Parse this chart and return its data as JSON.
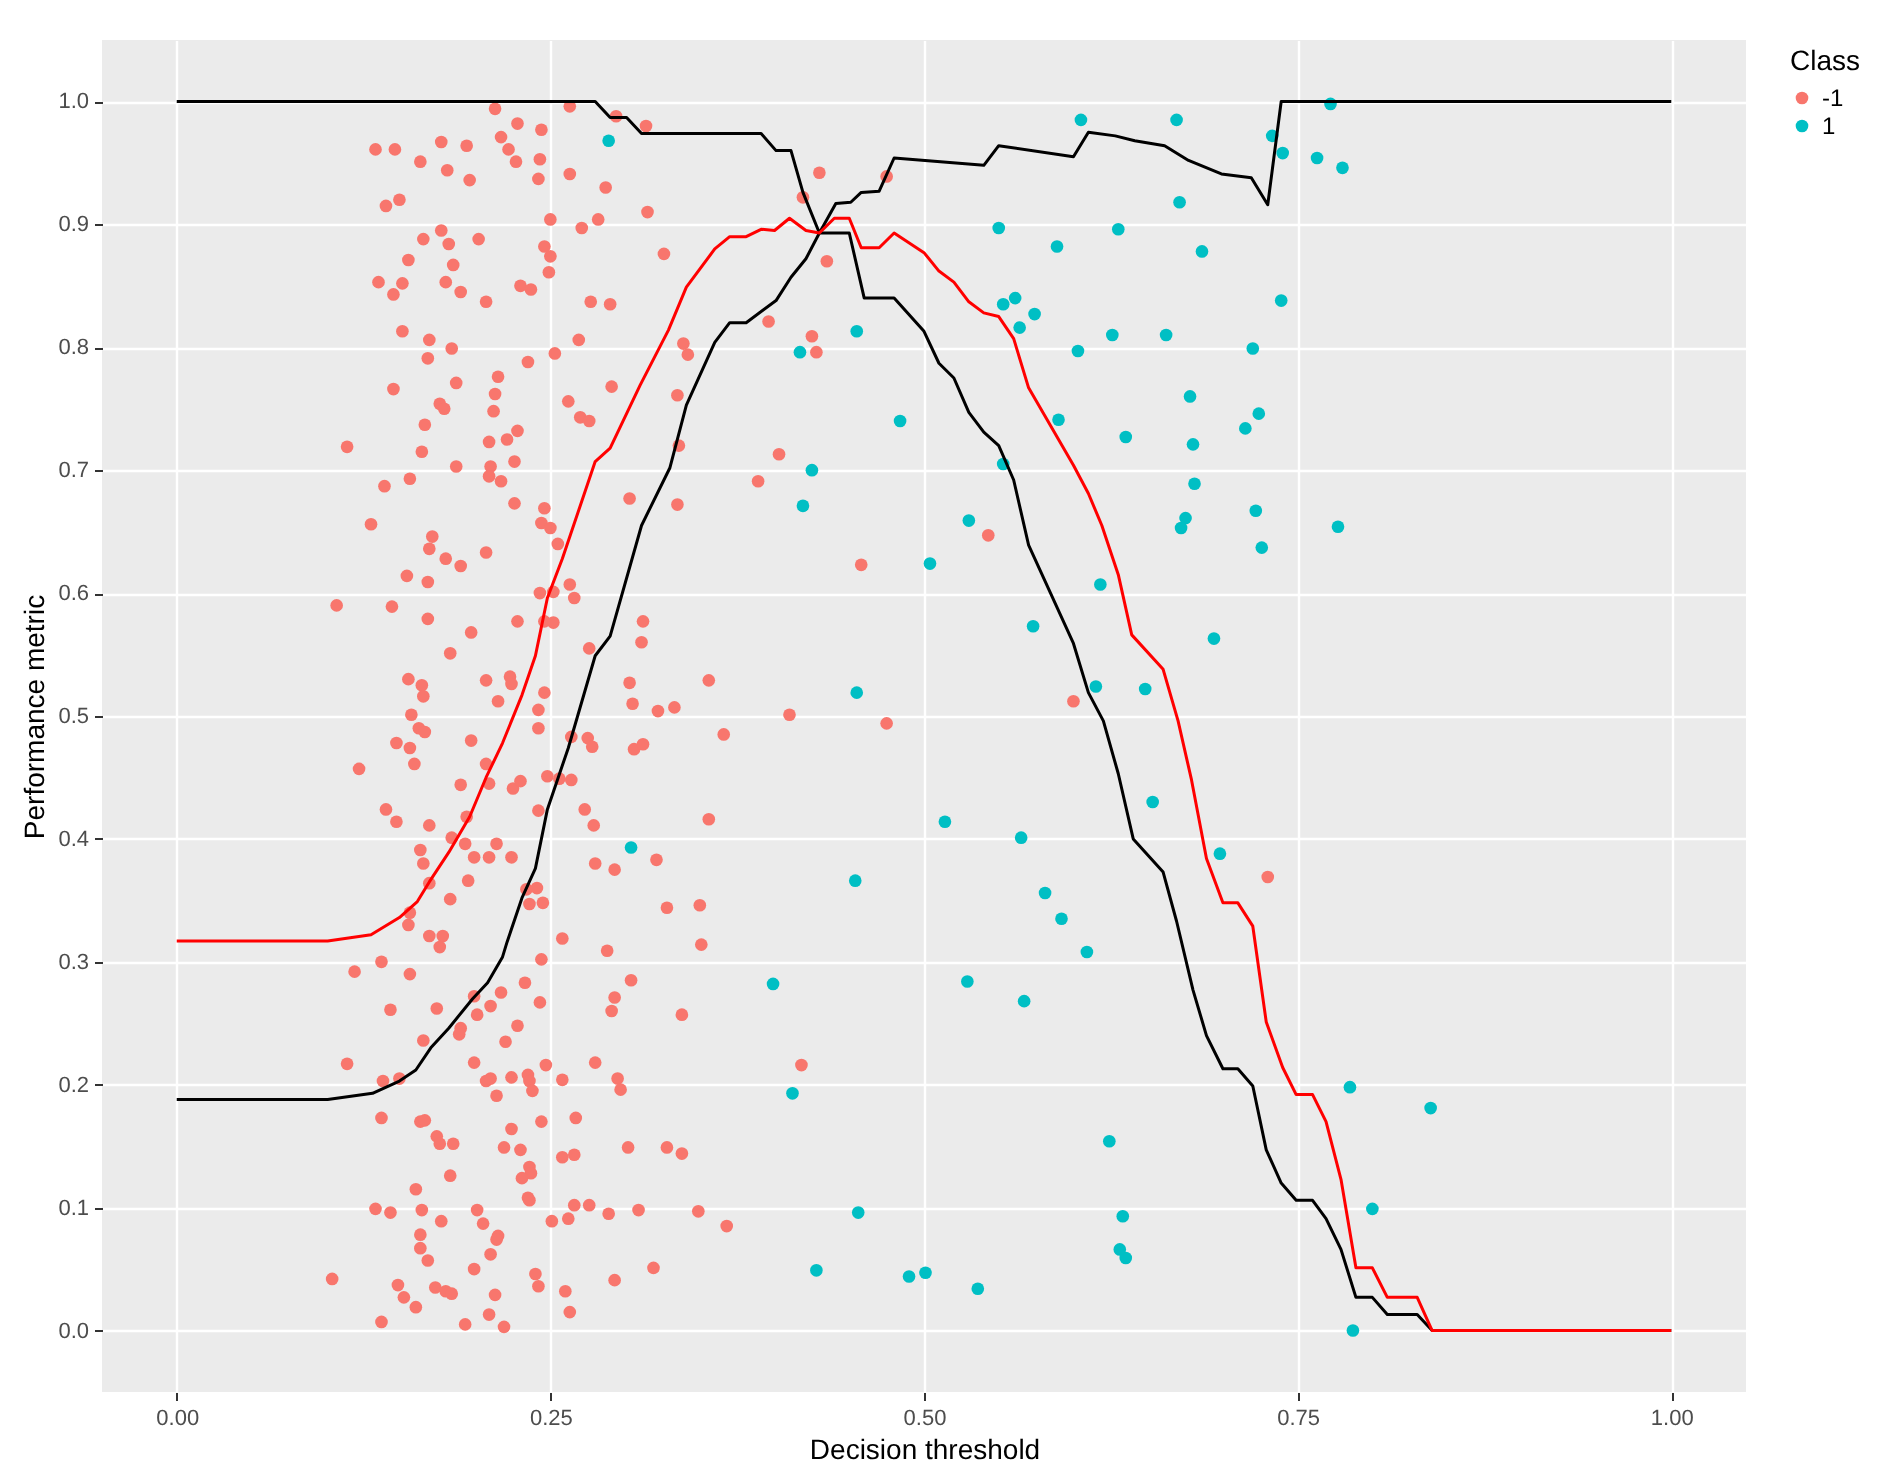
{
  "chart_data": {
    "type": "scatter",
    "xlabel": "Decision threshold",
    "ylabel": "Performance metric",
    "legend_title": "Class",
    "legend": "right",
    "grid": true,
    "xlim": [
      -0.05,
      1.05
    ],
    "ylim": [
      -0.05,
      1.05
    ],
    "xticks": [
      {
        "value": 0,
        "label": "0.00"
      },
      {
        "value": 0.25,
        "label": "0.25"
      },
      {
        "value": 0.5,
        "label": "0.50"
      },
      {
        "value": 0.75,
        "label": "0.75"
      },
      {
        "value": 1,
        "label": "1.00"
      }
    ],
    "yticks": [
      {
        "value": 0,
        "label": "0.0"
      },
      {
        "value": 0.1,
        "label": "0.1"
      },
      {
        "value": 0.2,
        "label": "0.2"
      },
      {
        "value": 0.3,
        "label": "0.3"
      },
      {
        "value": 0.4,
        "label": "0.4"
      },
      {
        "value": 0.5,
        "label": "0.5"
      },
      {
        "value": 0.6,
        "label": "0.6"
      },
      {
        "value": 0.7,
        "label": "0.7"
      },
      {
        "value": 0.8,
        "label": "0.8"
      },
      {
        "value": 0.9,
        "label": "0.9"
      },
      {
        "value": 1,
        "label": "1.0"
      }
    ],
    "series": [
      {
        "name": "-1",
        "marker": "circle",
        "color": "#f8766d",
        "x": [
          0.213,
          0.263,
          0.294,
          0.314,
          0.228,
          0.244,
          0.217,
          0.133,
          0.146,
          0.177,
          0.194,
          0.222,
          0.163,
          0.181,
          0.227,
          0.243,
          0.196,
          0.242,
          0.263,
          0.287,
          0.43,
          0.475,
          0.419,
          0.14,
          0.149,
          0.315,
          0.25,
          0.282,
          0.271,
          0.177,
          0.165,
          0.182,
          0.202,
          0.246,
          0.25,
          0.326,
          0.155,
          0.185,
          0.249,
          0.435,
          0.135,
          0.151,
          0.18,
          0.19,
          0.145,
          0.207,
          0.23,
          0.237,
          0.277,
          0.29,
          0.396,
          0.425,
          0.428,
          0.151,
          0.169,
          0.184,
          0.168,
          0.253,
          0.269,
          0.235,
          0.339,
          0.342,
          0.145,
          0.187,
          0.215,
          0.213,
          0.291,
          0.176,
          0.179,
          0.212,
          0.262,
          0.27,
          0.276,
          0.335,
          0.166,
          0.114,
          0.164,
          0.209,
          0.221,
          0.228,
          0.187,
          0.21,
          0.209,
          0.217,
          0.226,
          0.336,
          0.403,
          0.389,
          0.139,
          0.156,
          0.226,
          0.246,
          0.244,
          0.25,
          0.303,
          0.335,
          0.13,
          0.171,
          0.169,
          0.18,
          0.19,
          0.207,
          0.255,
          0.458,
          0.154,
          0.168,
          0.107,
          0.144,
          0.168,
          0.243,
          0.252,
          0.263,
          0.266,
          0.197,
          0.228,
          0.246,
          0.252,
          0.312,
          0.311,
          0.276,
          0.183,
          0.155,
          0.164,
          0.165,
          0.207,
          0.223,
          0.224,
          0.215,
          0.246,
          0.242,
          0.303,
          0.305,
          0.356,
          0.322,
          0.333,
          0.41,
          0.157,
          0.366,
          0.543,
          0.6,
          0.475,
          0.73,
          0.162,
          0.166,
          0.242,
          0.147,
          0.156,
          0.159,
          0.197,
          0.122,
          0.264,
          0.275,
          0.278,
          0.306,
          0.312,
          0.207,
          0.19,
          0.209,
          0.225,
          0.23,
          0.248,
          0.256,
          0.264,
          0.14,
          0.147,
          0.169,
          0.194,
          0.242,
          0.273,
          0.279,
          0.356,
          0.163,
          0.165,
          0.169,
          0.184,
          0.193,
          0.199,
          0.209,
          0.214,
          0.224,
          0.195,
          0.183,
          0.234,
          0.241,
          0.236,
          0.245,
          0.28,
          0.293,
          0.321,
          0.328,
          0.35,
          0.351,
          0.156,
          0.155,
          0.169,
          0.178,
          0.176,
          0.258,
          0.288,
          0.137,
          0.119,
          0.156,
          0.244,
          0.233,
          0.217,
          0.243,
          0.304,
          0.293,
          0.291,
          0.338,
          0.143,
          0.174,
          0.199,
          0.201,
          0.21,
          0.19,
          0.189,
          0.228,
          0.22,
          0.165,
          0.114,
          0.138,
          0.149,
          0.199,
          0.207,
          0.214,
          0.21,
          0.224,
          0.235,
          0.236,
          0.238,
          0.247,
          0.258,
          0.28,
          0.295,
          0.297,
          0.418,
          0.137,
          0.163,
          0.166,
          0.224,
          0.244,
          0.267,
          0.174,
          0.176,
          0.185,
          0.219,
          0.23,
          0.258,
          0.266,
          0.302,
          0.328,
          0.338,
          0.236,
          0.237,
          0.231,
          0.16,
          0.183,
          0.235,
          0.236,
          0.133,
          0.143,
          0.164,
          0.177,
          0.201,
          0.205,
          0.215,
          0.214,
          0.251,
          0.262,
          0.266,
          0.276,
          0.289,
          0.309,
          0.349,
          0.368,
          0.163,
          0.163,
          0.168,
          0.21,
          0.199,
          0.24,
          0.242,
          0.293,
          0.319,
          0.104,
          0.148,
          0.152,
          0.16,
          0.173,
          0.18,
          0.184,
          0.213,
          0.209,
          0.219,
          0.193,
          0.137,
          0.26,
          0.263
        ],
        "values": [
          0.994,
          0.996,
          0.988,
          0.98,
          0.982,
          0.977,
          0.971,
          0.961,
          0.961,
          0.967,
          0.964,
          0.961,
          0.951,
          0.944,
          0.951,
          0.953,
          0.936,
          0.937,
          0.941,
          0.93,
          0.942,
          0.939,
          0.922,
          0.915,
          0.92,
          0.91,
          0.904,
          0.904,
          0.897,
          0.895,
          0.888,
          0.884,
          0.888,
          0.882,
          0.874,
          0.876,
          0.871,
          0.867,
          0.861,
          0.87,
          0.853,
          0.852,
          0.853,
          0.845,
          0.843,
          0.837,
          0.85,
          0.847,
          0.837,
          0.835,
          0.821,
          0.809,
          0.796,
          0.813,
          0.806,
          0.799,
          0.791,
          0.795,
          0.806,
          0.788,
          0.803,
          0.794,
          0.766,
          0.771,
          0.776,
          0.762,
          0.768,
          0.754,
          0.75,
          0.748,
          0.756,
          0.743,
          0.74,
          0.761,
          0.737,
          0.719,
          0.715,
          0.723,
          0.725,
          0.732,
          0.703,
          0.703,
          0.695,
          0.691,
          0.707,
          0.72,
          0.713,
          0.691,
          0.687,
          0.693,
          0.673,
          0.669,
          0.657,
          0.653,
          0.677,
          0.672,
          0.656,
          0.646,
          0.636,
          0.628,
          0.622,
          0.633,
          0.64,
          0.623,
          0.614,
          0.609,
          0.59,
          0.589,
          0.579,
          0.6,
          0.601,
          0.607,
          0.596,
          0.568,
          0.577,
          0.577,
          0.576,
          0.577,
          0.56,
          0.555,
          0.551,
          0.53,
          0.525,
          0.516,
          0.529,
          0.532,
          0.526,
          0.512,
          0.519,
          0.505,
          0.527,
          0.51,
          0.529,
          0.504,
          0.507,
          0.501,
          0.501,
          0.485,
          0.647,
          0.512,
          0.494,
          0.369,
          0.49,
          0.487,
          0.49,
          0.478,
          0.474,
          0.461,
          0.48,
          0.457,
          0.483,
          0.482,
          0.475,
          0.473,
          0.477,
          0.461,
          0.444,
          0.445,
          0.441,
          0.447,
          0.451,
          0.449,
          0.448,
          0.424,
          0.414,
          0.411,
          0.418,
          0.423,
          0.424,
          0.411,
          0.416,
          0.391,
          0.38,
          0.364,
          0.401,
          0.396,
          0.385,
          0.385,
          0.396,
          0.385,
          0.366,
          0.351,
          0.359,
          0.36,
          0.347,
          0.348,
          0.38,
          0.375,
          0.383,
          0.344,
          0.346,
          0.314,
          0.34,
          0.33,
          0.321,
          0.321,
          0.312,
          0.319,
          0.309,
          0.3,
          0.292,
          0.29,
          0.302,
          0.283,
          0.275,
          0.267,
          0.285,
          0.271,
          0.26,
          0.257,
          0.261,
          0.262,
          0.272,
          0.257,
          0.264,
          0.246,
          0.241,
          0.248,
          0.235,
          0.236,
          0.217,
          0.203,
          0.205,
          0.218,
          0.203,
          0.191,
          0.205,
          0.206,
          0.208,
          0.203,
          0.195,
          0.216,
          0.204,
          0.218,
          0.205,
          0.196,
          0.216,
          0.173,
          0.17,
          0.171,
          0.164,
          0.17,
          0.173,
          0.158,
          0.152,
          0.152,
          0.149,
          0.147,
          0.141,
          0.143,
          0.149,
          0.149,
          0.144,
          0.133,
          0.128,
          0.124,
          0.115,
          0.126,
          0.108,
          0.106,
          0.099,
          0.096,
          0.098,
          0.089,
          0.098,
          0.087,
          0.077,
          0.074,
          0.089,
          0.091,
          0.102,
          0.102,
          0.095,
          0.098,
          0.097,
          0.085,
          0.078,
          0.067,
          0.057,
          0.062,
          0.05,
          0.046,
          0.036,
          0.041,
          0.051,
          0.042,
          0.037,
          0.027,
          0.019,
          0.035,
          0.032,
          0.03,
          0.029,
          0.013,
          0.003,
          0.005,
          0.007,
          0.032,
          0.015
        ]
      },
      {
        "name": "1",
        "marker": "circle",
        "color": "#00bfc4",
        "x": [
          0.605,
          0.669,
          0.772,
          0.733,
          0.74,
          0.763,
          0.78,
          0.671,
          0.55,
          0.63,
          0.589,
          0.686,
          0.553,
          0.561,
          0.574,
          0.564,
          0.739,
          0.626,
          0.662,
          0.603,
          0.72,
          0.678,
          0.484,
          0.59,
          0.724,
          0.715,
          0.635,
          0.68,
          0.553,
          0.681,
          0.53,
          0.675,
          0.672,
          0.722,
          0.777,
          0.726,
          0.504,
          0.618,
          0.573,
          0.694,
          0.615,
          0.648,
          0.653,
          0.514,
          0.565,
          0.698,
          0.581,
          0.592,
          0.609,
          0.529,
          0.567,
          0.785,
          0.839,
          0.624,
          0.8,
          0.633,
          0.631,
          0.635,
          0.49,
          0.501,
          0.536,
          0.787,
          0.304,
          0.454,
          0.399,
          0.412,
          0.456,
          0.428,
          0.289,
          0.455,
          0.417,
          0.425,
          0.419,
          0.455
        ],
        "values": [
          0.985,
          0.985,
          0.998,
          0.972,
          0.958,
          0.954,
          0.946,
          0.918,
          0.897,
          0.896,
          0.882,
          0.878,
          0.835,
          0.84,
          0.827,
          0.816,
          0.838,
          0.81,
          0.81,
          0.797,
          0.799,
          0.76,
          0.74,
          0.741,
          0.746,
          0.734,
          0.727,
          0.721,
          0.705,
          0.689,
          0.659,
          0.661,
          0.653,
          0.667,
          0.654,
          0.637,
          0.624,
          0.607,
          0.573,
          0.563,
          0.524,
          0.522,
          0.43,
          0.414,
          0.401,
          0.388,
          0.356,
          0.335,
          0.308,
          0.284,
          0.268,
          0.198,
          0.181,
          0.154,
          0.099,
          0.093,
          0.066,
          0.059,
          0.044,
          0.047,
          0.034,
          0.0,
          0.393,
          0.366,
          0.282,
          0.193,
          0.096,
          0.049,
          0.968,
          0.813,
          0.796,
          0.7,
          0.671,
          0.519
        ]
      },
      {
        "type": "line",
        "color": "#000000",
        "x": [
          0,
          0.28,
          0.29,
          0.301,
          0.311,
          0.391,
          0.401,
          0.411,
          0.419,
          0.43,
          0.441,
          0.451,
          0.458,
          0.47,
          0.48,
          0.54,
          0.55,
          0.6,
          0.61,
          0.628,
          0.641,
          0.661,
          0.677,
          0.699,
          0.719,
          0.73,
          0.739,
          1
        ],
        "values": [
          1,
          1,
          0.987,
          0.987,
          0.974,
          0.974,
          0.96,
          0.96,
          0.926,
          0.893,
          0.917,
          0.918,
          0.926,
          0.927,
          0.954,
          0.948,
          0.964,
          0.955,
          0.975,
          0.972,
          0.968,
          0.964,
          0.952,
          0.941,
          0.938,
          0.916,
          1,
          1
        ]
      },
      {
        "type": "line",
        "color": "#000000",
        "x": [
          0,
          0.101,
          0.131,
          0.149,
          0.16,
          0.17,
          0.182,
          0.198,
          0.208,
          0.218,
          0.221,
          0.231,
          0.24,
          0.248,
          0.262,
          0.28,
          0.29,
          0.311,
          0.33,
          0.341,
          0.36,
          0.37,
          0.381,
          0.401,
          0.411,
          0.421,
          0.43,
          0.45,
          0.46,
          0.48,
          0.5,
          0.51,
          0.52,
          0.53,
          0.54,
          0.55,
          0.56,
          0.57,
          0.6,
          0.61,
          0.62,
          0.63,
          0.64,
          0.66,
          0.669,
          0.68,
          0.689,
          0.7,
          0.71,
          0.72,
          0.729,
          0.739,
          0.749,
          0.76,
          0.769,
          0.779,
          0.789,
          0.8,
          0.81,
          0.83,
          0.84,
          1
        ],
        "values": [
          0.188,
          0.188,
          0.193,
          0.203,
          0.212,
          0.23,
          0.246,
          0.27,
          0.283,
          0.304,
          0.316,
          0.352,
          0.376,
          0.424,
          0.474,
          0.549,
          0.565,
          0.655,
          0.702,
          0.753,
          0.804,
          0.82,
          0.82,
          0.838,
          0.857,
          0.872,
          0.893,
          0.893,
          0.84,
          0.84,
          0.813,
          0.787,
          0.775,
          0.747,
          0.731,
          0.72,
          0.692,
          0.639,
          0.559,
          0.519,
          0.496,
          0.453,
          0.4,
          0.373,
          0.333,
          0.277,
          0.24,
          0.213,
          0.213,
          0.199,
          0.147,
          0.12,
          0.106,
          0.106,
          0.091,
          0.066,
          0.027,
          0.027,
          0.013,
          0.013,
          0,
          0
        ]
      },
      {
        "type": "line",
        "color": "#ff0000",
        "x": [
          0,
          0.101,
          0.13,
          0.149,
          0.161,
          0.169,
          0.182,
          0.196,
          0.207,
          0.218,
          0.231,
          0.24,
          0.248,
          0.258,
          0.28,
          0.29,
          0.31,
          0.329,
          0.341,
          0.36,
          0.37,
          0.381,
          0.391,
          0.4,
          0.41,
          0.421,
          0.43,
          0.44,
          0.45,
          0.458,
          0.47,
          0.48,
          0.5,
          0.51,
          0.52,
          0.53,
          0.54,
          0.55,
          0.56,
          0.57,
          0.6,
          0.61,
          0.619,
          0.63,
          0.639,
          0.66,
          0.67,
          0.679,
          0.689,
          0.7,
          0.71,
          0.72,
          0.729,
          0.74,
          0.749,
          0.76,
          0.769,
          0.779,
          0.789,
          0.8,
          0.81,
          0.83,
          0.84,
          1
        ],
        "values": [
          0.317,
          0.317,
          0.322,
          0.336,
          0.349,
          0.365,
          0.389,
          0.418,
          0.45,
          0.478,
          0.517,
          0.549,
          0.596,
          0.628,
          0.707,
          0.718,
          0.769,
          0.814,
          0.849,
          0.88,
          0.89,
          0.89,
          0.896,
          0.895,
          0.905,
          0.895,
          0.893,
          0.905,
          0.905,
          0.881,
          0.881,
          0.893,
          0.877,
          0.862,
          0.853,
          0.837,
          0.828,
          0.825,
          0.807,
          0.767,
          0.704,
          0.681,
          0.655,
          0.615,
          0.566,
          0.538,
          0.496,
          0.448,
          0.384,
          0.348,
          0.348,
          0.329,
          0.251,
          0.214,
          0.192,
          0.192,
          0.17,
          0.123,
          0.051,
          0.051,
          0.027,
          0.027,
          0,
          0
        ]
      }
    ]
  }
}
